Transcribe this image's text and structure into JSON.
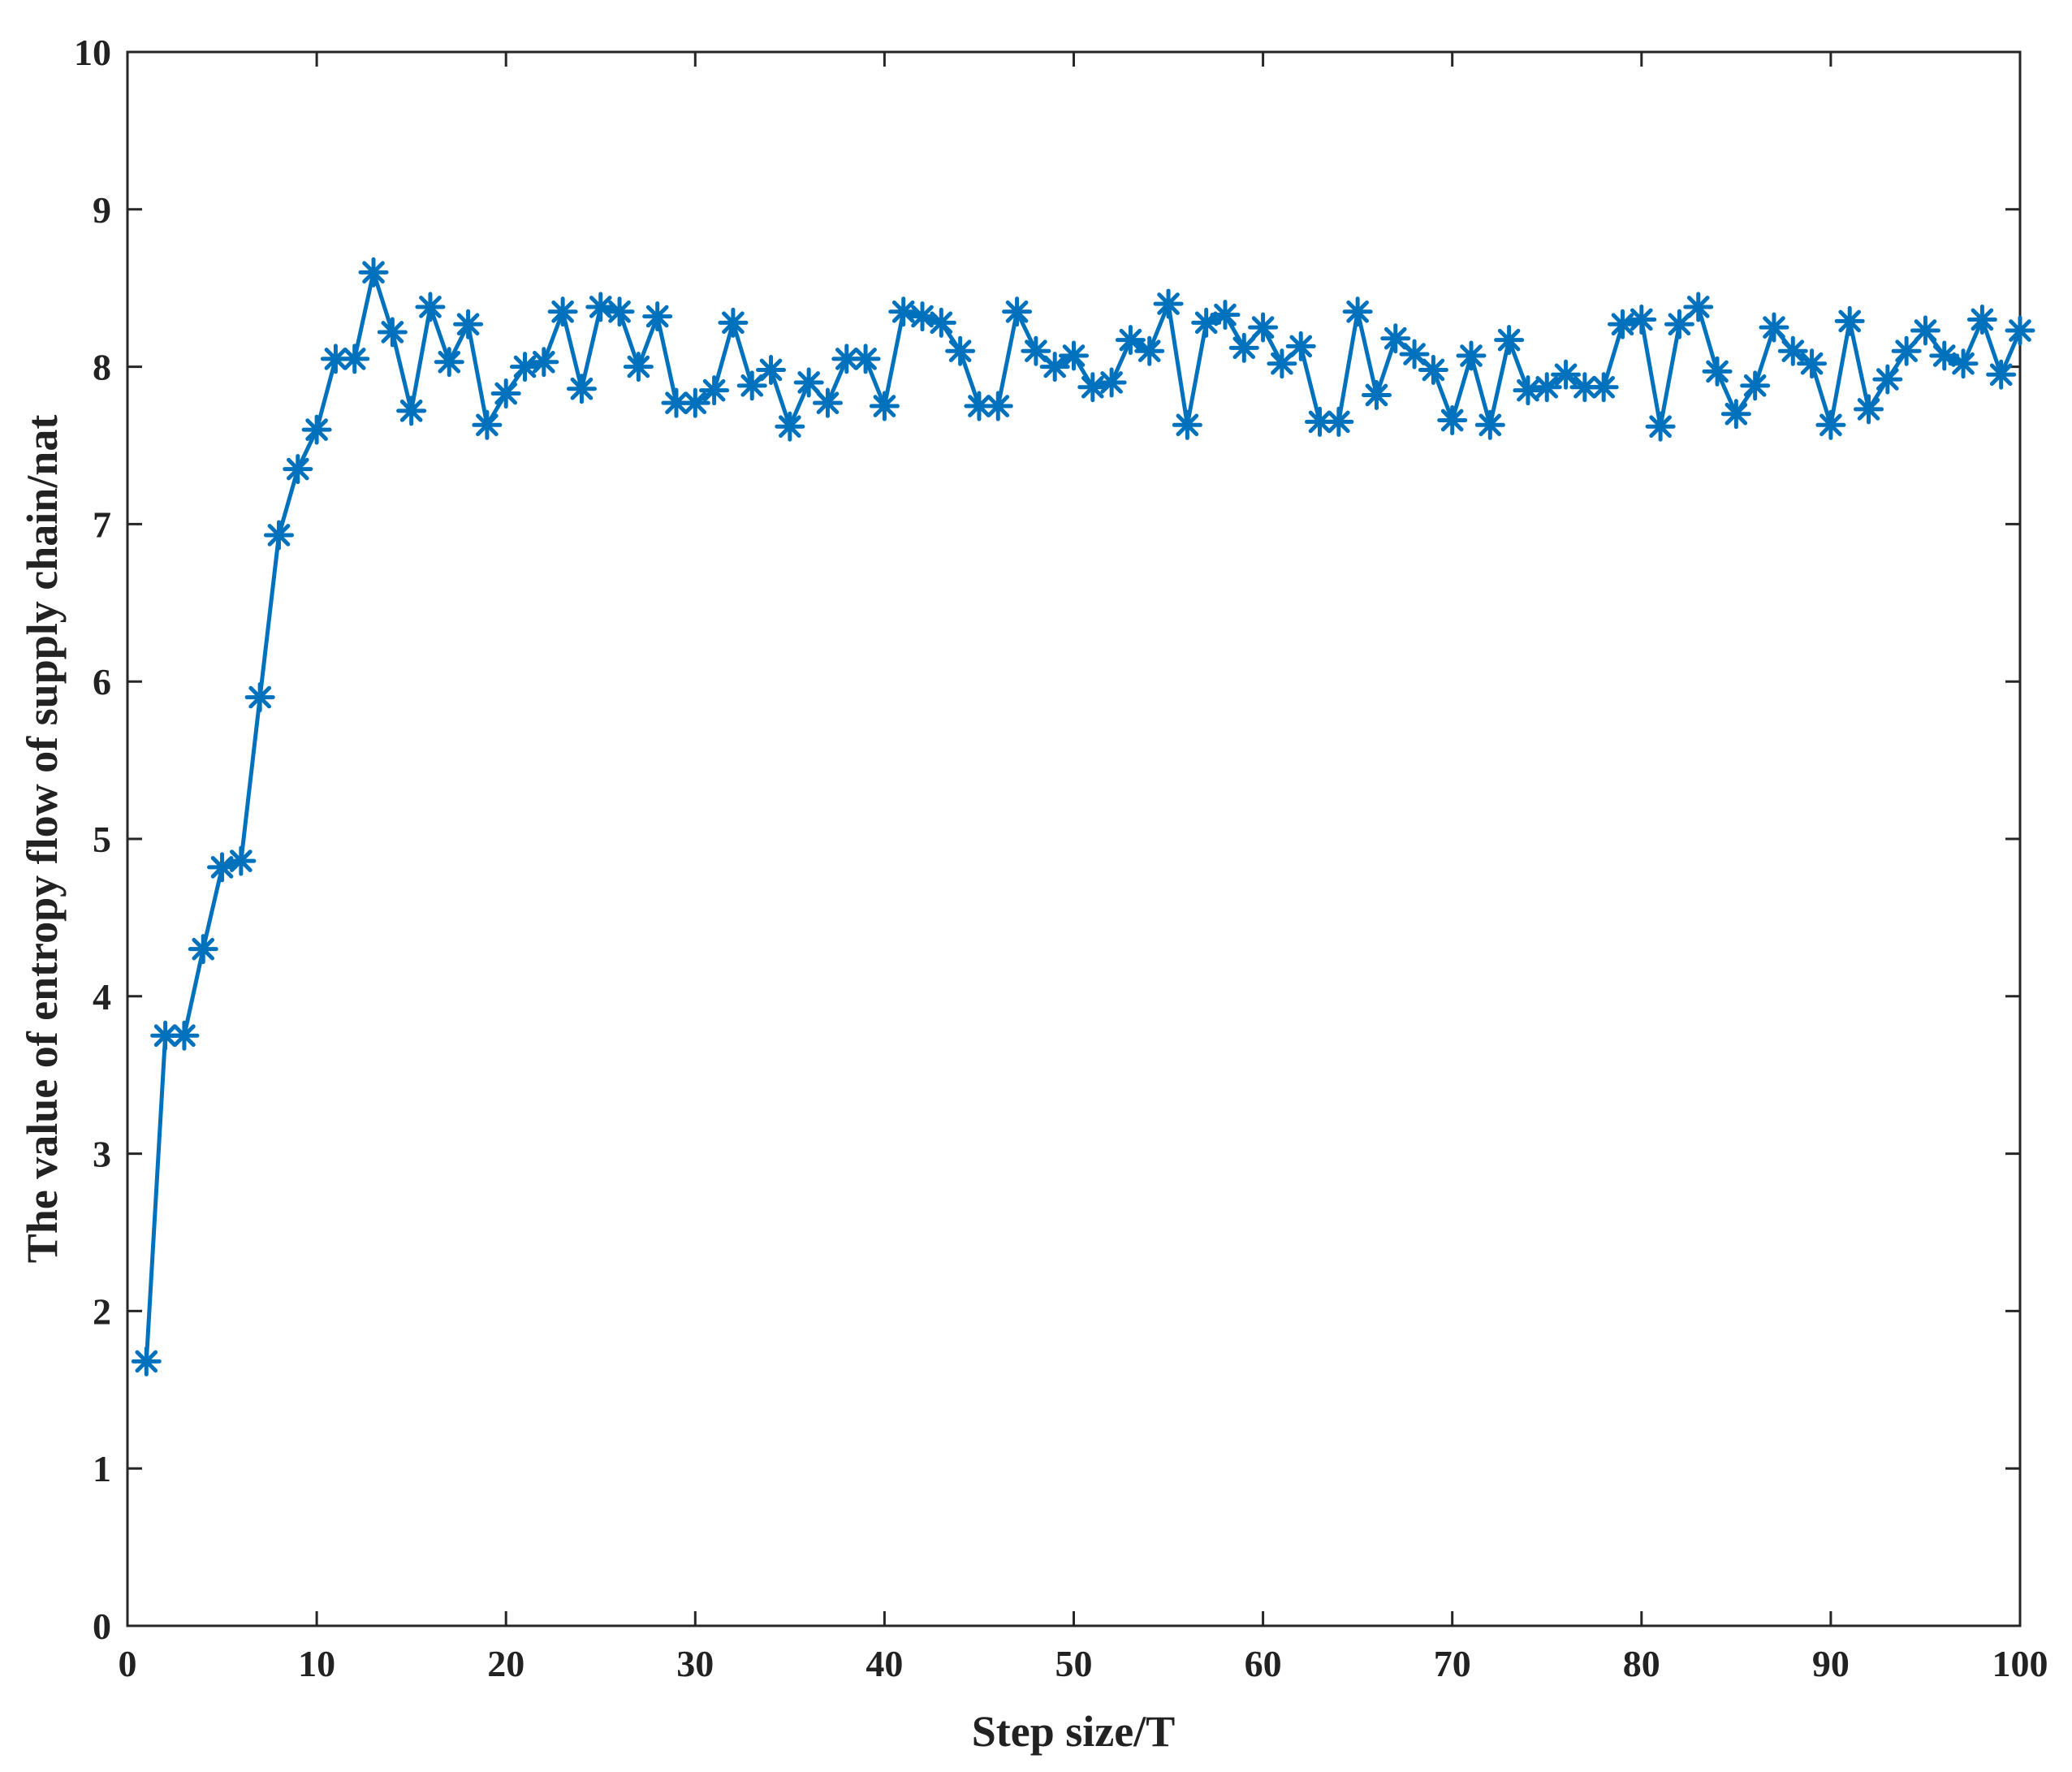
{
  "chart_data": {
    "type": "line",
    "title": "",
    "xlabel": "Step size/T",
    "ylabel": "The value of entropy flow of supply chain/nat",
    "xlim": [
      0,
      100
    ],
    "ylim": [
      0,
      10
    ],
    "xticks": [
      0,
      10,
      20,
      30,
      40,
      50,
      60,
      70,
      80,
      90,
      100
    ],
    "yticks": [
      0,
      1,
      2,
      3,
      4,
      5,
      6,
      7,
      8,
      9,
      10
    ],
    "xtick_labels": [
      "0",
      "10",
      "20",
      "30",
      "40",
      "50",
      "60",
      "70",
      "80",
      "90",
      "100"
    ],
    "ytick_labels": [
      "0",
      "1",
      "2",
      "3",
      "4",
      "5",
      "6",
      "7",
      "8",
      "9",
      "10"
    ],
    "grid": false,
    "legend": "none",
    "marker": "asterisk",
    "line_color": "#0072BD",
    "series": [
      {
        "x": [
          1,
          2,
          3,
          4,
          5,
          6,
          7,
          8,
          9,
          10,
          11,
          12,
          13,
          14,
          15,
          16,
          17,
          18,
          19,
          20,
          21,
          22,
          23,
          24,
          25,
          26,
          27,
          28,
          29,
          30,
          31,
          32,
          33,
          34,
          35,
          36,
          37,
          38,
          39,
          40,
          41,
          42,
          43,
          44,
          45,
          46,
          47,
          48,
          49,
          50,
          51,
          52,
          53,
          54,
          55,
          56,
          57,
          58,
          59,
          60,
          61,
          62,
          63,
          64,
          65,
          66,
          67,
          68,
          69,
          70,
          71,
          72,
          73,
          74,
          75,
          76,
          77,
          78,
          79,
          80,
          81,
          82,
          83,
          84,
          85,
          86,
          87,
          88,
          89,
          90,
          91,
          92,
          93,
          94,
          95,
          96,
          97,
          98,
          99,
          100
        ],
        "values": [
          1.68,
          3.75,
          3.75,
          4.3,
          4.82,
          4.86,
          5.9,
          6.93,
          7.35,
          7.6,
          8.05,
          8.05,
          8.6,
          8.22,
          7.72,
          8.38,
          8.03,
          8.27,
          7.63,
          7.83,
          8.0,
          8.03,
          8.35,
          7.86,
          8.38,
          8.35,
          8.0,
          8.32,
          7.77,
          7.77,
          7.85,
          8.28,
          7.88,
          7.98,
          7.62,
          7.9,
          7.77,
          8.05,
          8.05,
          7.75,
          8.35,
          8.32,
          8.28,
          8.1,
          7.75,
          7.75,
          8.35,
          8.1,
          8.0,
          8.07,
          7.87,
          7.9,
          8.17,
          8.1,
          8.4,
          7.63,
          8.28,
          8.33,
          8.12,
          8.25,
          8.02,
          8.13,
          7.65,
          7.65,
          8.35,
          7.82,
          8.18,
          8.08,
          7.98,
          7.66,
          8.07,
          7.63,
          8.17,
          7.85,
          7.87,
          7.95,
          7.87,
          7.87,
          8.27,
          8.3,
          7.62,
          8.27,
          8.38,
          7.97,
          7.7,
          7.88,
          8.25,
          8.1,
          8.02,
          7.63,
          8.29,
          7.73,
          7.92,
          8.1,
          8.23,
          8.07,
          8.02,
          8.3,
          7.95,
          8.23
        ]
      }
    ]
  }
}
